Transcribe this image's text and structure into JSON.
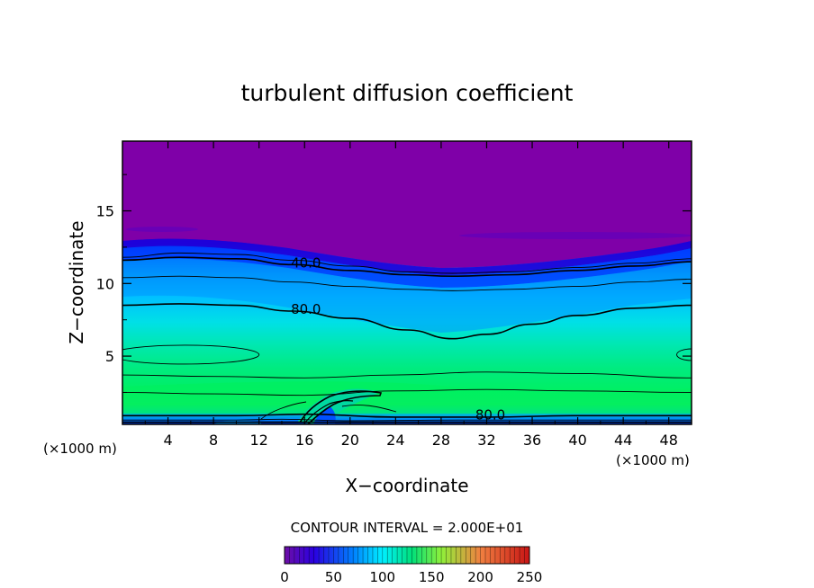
{
  "chart_data": {
    "type": "heatmap",
    "title": "turbulent diffusion coefficient",
    "xlabel": "X−coordinate",
    "ylabel": "Z−coordinate",
    "x_unit": "(×1000 m)",
    "y_unit": "(×1000 m)",
    "xlim": [
      0,
      50
    ],
    "ylim": [
      0.3,
      19.8
    ],
    "x_ticks": [
      4,
      8,
      12,
      16,
      20,
      24,
      28,
      32,
      36,
      40,
      44,
      48
    ],
    "y_ticks": [
      5,
      10,
      15
    ],
    "contour_interval_label": "CONTOUR INTERVAL = 2.000E+01",
    "contour_labels": [
      {
        "text": "40.0",
        "x": 14.8,
        "z": 11.1
      },
      {
        "text": "80.0",
        "x": 14.8,
        "z": 7.9
      },
      {
        "text": "80.0",
        "x": 31.0,
        "z": 0.65
      }
    ],
    "contour_lines": [
      {
        "level": 20,
        "points": [
          [
            0,
            11.8
          ],
          [
            5,
            12.1
          ],
          [
            10,
            12.0
          ],
          [
            15,
            11.6
          ],
          [
            20,
            11.2
          ],
          [
            25,
            10.8
          ],
          [
            29,
            10.7
          ],
          [
            34,
            10.8
          ],
          [
            40,
            11.1
          ],
          [
            45,
            11.4
          ],
          [
            50,
            11.7
          ]
        ]
      },
      {
        "level": 40,
        "points": [
          [
            0,
            11.6
          ],
          [
            5,
            11.8
          ],
          [
            10,
            11.7
          ],
          [
            15,
            11.3
          ],
          [
            20,
            10.9
          ],
          [
            25,
            10.6
          ],
          [
            29,
            10.5
          ],
          [
            34,
            10.6
          ],
          [
            40,
            10.9
          ],
          [
            45,
            11.2
          ],
          [
            50,
            11.5
          ]
        ]
      },
      {
        "level": 60,
        "points": [
          [
            0,
            10.4
          ],
          [
            5,
            10.5
          ],
          [
            10,
            10.4
          ],
          [
            15,
            10.1
          ],
          [
            20,
            9.8
          ],
          [
            25,
            9.6
          ],
          [
            29,
            9.5
          ],
          [
            34,
            9.6
          ],
          [
            40,
            9.8
          ],
          [
            45,
            10.1
          ],
          [
            50,
            10.3
          ]
        ]
      },
      {
        "level": 80,
        "points": [
          [
            0,
            8.5
          ],
          [
            5,
            8.6
          ],
          [
            10,
            8.5
          ],
          [
            15,
            8.1
          ],
          [
            20,
            7.6
          ],
          [
            25,
            6.8
          ],
          [
            29,
            6.2
          ],
          [
            32,
            6.5
          ],
          [
            36,
            7.2
          ],
          [
            40,
            7.8
          ],
          [
            45,
            8.3
          ],
          [
            50,
            8.5
          ]
        ]
      },
      {
        "level": 120,
        "points": [
          [
            0,
            3.7
          ],
          [
            8,
            3.6
          ],
          [
            16,
            3.5
          ],
          [
            24,
            3.7
          ],
          [
            32,
            3.9
          ],
          [
            40,
            3.8
          ],
          [
            50,
            3.5
          ]
        ]
      },
      {
        "level": 120,
        "points": [
          [
            0,
            2.5
          ],
          [
            8,
            2.4
          ],
          [
            16,
            2.3
          ],
          [
            24,
            2.6
          ],
          [
            32,
            2.7
          ],
          [
            40,
            2.6
          ],
          [
            50,
            2.5
          ]
        ]
      },
      {
        "level": 80,
        "points": [
          [
            0,
            0.9
          ],
          [
            10,
            0.9
          ],
          [
            16,
            1.0
          ],
          [
            24,
            0.8
          ],
          [
            32,
            0.8
          ],
          [
            40,
            0.9
          ],
          [
            50,
            0.9
          ]
        ]
      },
      {
        "level": 60,
        "points": [
          [
            0,
            0.6
          ],
          [
            10,
            0.6
          ],
          [
            14,
            0.65
          ],
          [
            20,
            0.55
          ],
          [
            30,
            0.6
          ],
          [
            40,
            0.6
          ],
          [
            50,
            0.6
          ]
        ]
      },
      {
        "level": 40,
        "points": [
          [
            0,
            0.45
          ],
          [
            10,
            0.45
          ],
          [
            20,
            0.45
          ],
          [
            30,
            0.45
          ],
          [
            40,
            0.45
          ],
          [
            50,
            0.45
          ]
        ]
      }
    ],
    "closed_contours": [
      {
        "level": 100,
        "cx": 5.5,
        "cz": 5.1,
        "rx": 6.5,
        "rz": 0.65
      },
      {
        "level": 100,
        "cx": 50.0,
        "cz": 5.1,
        "rx": 1.3,
        "rz": 0.4
      }
    ],
    "colorbar": {
      "min": 0,
      "max": 250,
      "ticks": [
        0,
        50,
        100,
        150,
        200,
        250
      ],
      "colors": [
        "#6e0ea6",
        "#2a00e0",
        "#0080ff",
        "#00f0ff",
        "#00e07a",
        "#8ff03a",
        "#f08040",
        "#c81414"
      ]
    },
    "colors": {
      "upper_layer": "#7f00a8",
      "low_diffusion": "#0000dc",
      "mid": "#00c8ff",
      "high": "#00f064"
    }
  }
}
